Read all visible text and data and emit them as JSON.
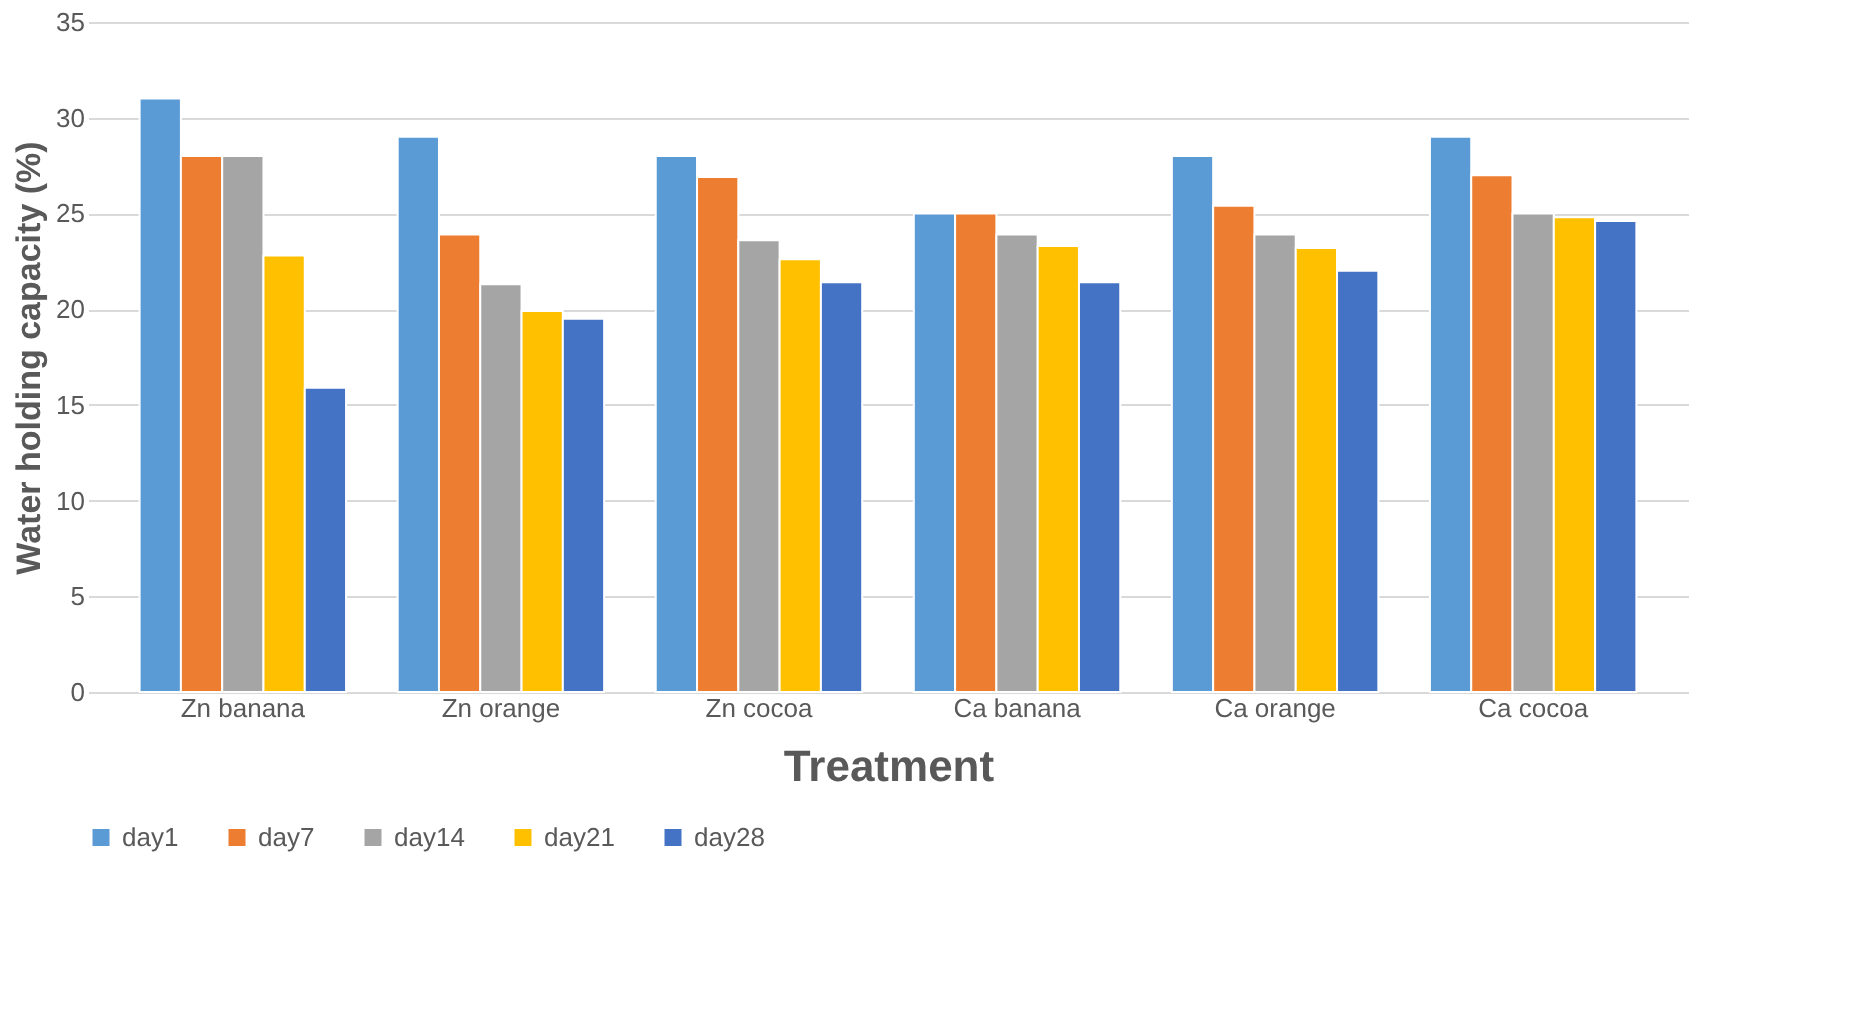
{
  "chart_data": {
    "type": "bar",
    "xlabel": "Treatment",
    "ylabel": "Water holding capacity (%)",
    "categories": [
      "Zn banana",
      "Zn orange",
      "Zn cocoa",
      "Ca banana",
      "Ca orange",
      "Ca cocoa"
    ],
    "series": [
      {
        "name": "day1",
        "color": "#5b9bd5",
        "values": [
          31,
          29,
          28,
          25,
          28,
          29
        ]
      },
      {
        "name": "day7",
        "color": "#ed7d31",
        "values": [
          28,
          23.9,
          26.9,
          25,
          25.4,
          27
        ]
      },
      {
        "name": "day14",
        "color": "#a5a5a5",
        "values": [
          28,
          21.3,
          23.6,
          23.9,
          23.9,
          25
        ]
      },
      {
        "name": "day21",
        "color": "#ffc000",
        "values": [
          22.8,
          19.9,
          22.6,
          23.3,
          23.2,
          24.8
        ]
      },
      {
        "name": "day28",
        "color": "#4472c4",
        "values": [
          15.9,
          19.5,
          21.4,
          21.4,
          22.0,
          24.6
        ]
      }
    ],
    "ylim": [
      0,
      35
    ],
    "yticks": [
      0,
      5,
      10,
      15,
      20,
      25,
      30,
      35
    ],
    "grid": "y",
    "legend": "bottom"
  }
}
